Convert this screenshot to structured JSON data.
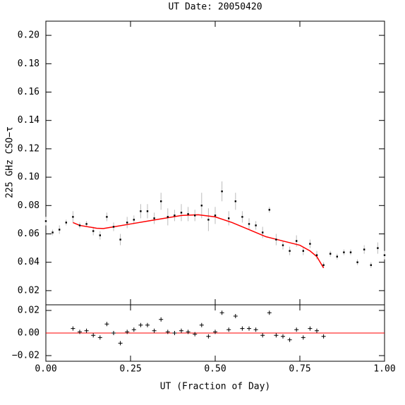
{
  "chart_data": [
    {
      "type": "scatter",
      "title": "UT Date: 20050420",
      "y_label": "225 GHz CSO−τ",
      "color": "#000000",
      "error_color": "#bbbbbb",
      "x": [
        0.0,
        0.02,
        0.04,
        0.06,
        0.08,
        0.1,
        0.12,
        0.14,
        0.16,
        0.18,
        0.2,
        0.22,
        0.24,
        0.26,
        0.28,
        0.3,
        0.32,
        0.34,
        0.36,
        0.38,
        0.4,
        0.42,
        0.44,
        0.46,
        0.48,
        0.5,
        0.52,
        0.54,
        0.56,
        0.58,
        0.6,
        0.62,
        0.64,
        0.66,
        0.68,
        0.7,
        0.72,
        0.74,
        0.76,
        0.78,
        0.8,
        0.82,
        0.84,
        0.86,
        0.88,
        0.9,
        0.92,
        0.94,
        0.96,
        0.98,
        1.0
      ],
      "values": [
        0.069,
        0.061,
        0.063,
        0.068,
        0.072,
        0.066,
        0.067,
        0.062,
        0.059,
        0.072,
        0.065,
        0.056,
        0.068,
        0.07,
        0.076,
        0.076,
        0.071,
        0.083,
        0.072,
        0.073,
        0.075,
        0.074,
        0.073,
        0.08,
        0.07,
        0.073,
        0.09,
        0.071,
        0.083,
        0.072,
        0.067,
        0.066,
        0.061,
        0.077,
        0.056,
        0.052,
        0.048,
        0.055,
        0.048,
        0.053,
        0.045,
        0.038,
        0.046,
        0.044,
        0.047,
        0.047,
        0.04,
        0.049,
        0.038,
        0.05,
        0.045
      ],
      "errors": [
        0.003,
        0.002,
        0.003,
        0.002,
        0.004,
        0.002,
        0.002,
        0.003,
        0.003,
        0.003,
        0.003,
        0.004,
        0.004,
        0.003,
        0.005,
        0.005,
        0.004,
        0.006,
        0.006,
        0.004,
        0.006,
        0.005,
        0.004,
        0.009,
        0.008,
        0.006,
        0.007,
        0.005,
        0.006,
        0.004,
        0.004,
        0.003,
        0.004,
        0.002,
        0.004,
        0.003,
        0.003,
        0.004,
        0.003,
        0.003,
        0.003,
        0.002,
        0.002,
        0.002,
        0.002,
        0.002,
        0.002,
        0.003,
        0.002,
        0.004,
        0.003
      ],
      "fit": {
        "color": "#ff0000",
        "x": [
          0.08,
          0.1,
          0.15,
          0.17,
          0.2,
          0.25,
          0.3,
          0.35,
          0.4,
          0.45,
          0.5,
          0.55,
          0.6,
          0.65,
          0.7,
          0.75,
          0.78,
          0.8,
          0.82
        ],
        "values": [
          0.068,
          0.066,
          0.064,
          0.0638,
          0.065,
          0.067,
          0.069,
          0.071,
          0.073,
          0.0735,
          0.072,
          0.068,
          0.063,
          0.058,
          0.055,
          0.052,
          0.048,
          0.044,
          0.036
        ]
      },
      "xlim": [
        0,
        1
      ],
      "xticks": [
        0,
        0.25,
        0.5,
        0.75,
        1
      ],
      "ylim": [
        0.01,
        0.21
      ],
      "yticks": [
        {
          "value": 0.02,
          "label": "0.02"
        },
        {
          "value": 0.04,
          "label": "0.04"
        },
        {
          "value": 0.06,
          "label": "0.06"
        },
        {
          "value": 0.08,
          "label": "0.08"
        },
        {
          "value": 0.1,
          "label": "0.10"
        },
        {
          "value": 0.12,
          "label": "0.12"
        },
        {
          "value": 0.14,
          "label": "0.14"
        },
        {
          "value": 0.16,
          "label": "0.16"
        },
        {
          "value": 0.18,
          "label": "0.18"
        },
        {
          "value": 0.2,
          "label": "0.20"
        }
      ]
    },
    {
      "type": "residual",
      "x_label": "UT (Fraction of Day)",
      "color": "#000000",
      "zero_line_color": "#ff0000",
      "x": [
        0.08,
        0.1,
        0.12,
        0.14,
        0.16,
        0.18,
        0.2,
        0.22,
        0.24,
        0.26,
        0.28,
        0.3,
        0.32,
        0.34,
        0.36,
        0.38,
        0.4,
        0.42,
        0.44,
        0.46,
        0.48,
        0.5,
        0.52,
        0.54,
        0.56,
        0.58,
        0.6,
        0.62,
        0.64,
        0.66,
        0.68,
        0.7,
        0.72,
        0.74,
        0.76,
        0.78,
        0.8,
        0.82
      ],
      "values": [
        0.004,
        0.001,
        0.002,
        -0.002,
        -0.004,
        0.008,
        0.0,
        -0.009,
        0.001,
        0.003,
        0.007,
        0.007,
        0.002,
        0.012,
        0.001,
        0.0,
        0.002,
        0.001,
        -0.001,
        0.007,
        -0.003,
        0.001,
        0.018,
        0.003,
        0.015,
        0.004,
        0.004,
        0.003,
        -0.002,
        0.018,
        -0.002,
        -0.003,
        -0.006,
        0.003,
        -0.004,
        0.004,
        0.002,
        -0.003
      ],
      "xlim": [
        0,
        1
      ],
      "xticks": [
        {
          "value": 0,
          "label": "0.00"
        },
        {
          "value": 0.25,
          "label": "0.25"
        },
        {
          "value": 0.5,
          "label": "0.50"
        },
        {
          "value": 0.75,
          "label": "0.75"
        },
        {
          "value": 1,
          "label": "1.00"
        }
      ],
      "ylim": [
        -0.025,
        0.025
      ],
      "yticks": [
        {
          "value": -0.02,
          "label": "−0.02"
        },
        {
          "value": 0,
          "label": "0.00"
        },
        {
          "value": 0.02,
          "label": "0.02"
        }
      ]
    }
  ]
}
